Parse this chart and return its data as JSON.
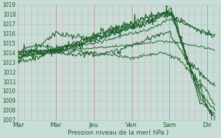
{
  "title": "",
  "xlabel": "Pression niveau de la mer( hPa )",
  "ylim": [
    1007,
    1019
  ],
  "yticks": [
    1007,
    1008,
    1009,
    1010,
    1011,
    1012,
    1013,
    1014,
    1015,
    1016,
    1017,
    1018,
    1019
  ],
  "xtick_labels": [
    "Mar",
    "Mar",
    "Jeu",
    "Ven",
    "Sam",
    "Dir"
  ],
  "xtick_pos": [
    0,
    1,
    2,
    3,
    4,
    5
  ],
  "bg_color": "#c8ddd8",
  "grid_color_h": "#b0ccb8",
  "grid_color_v": "#e8b8b8",
  "line_color": "#1a5c28",
  "xlim": [
    0,
    5.3
  ],
  "n_days": 6
}
